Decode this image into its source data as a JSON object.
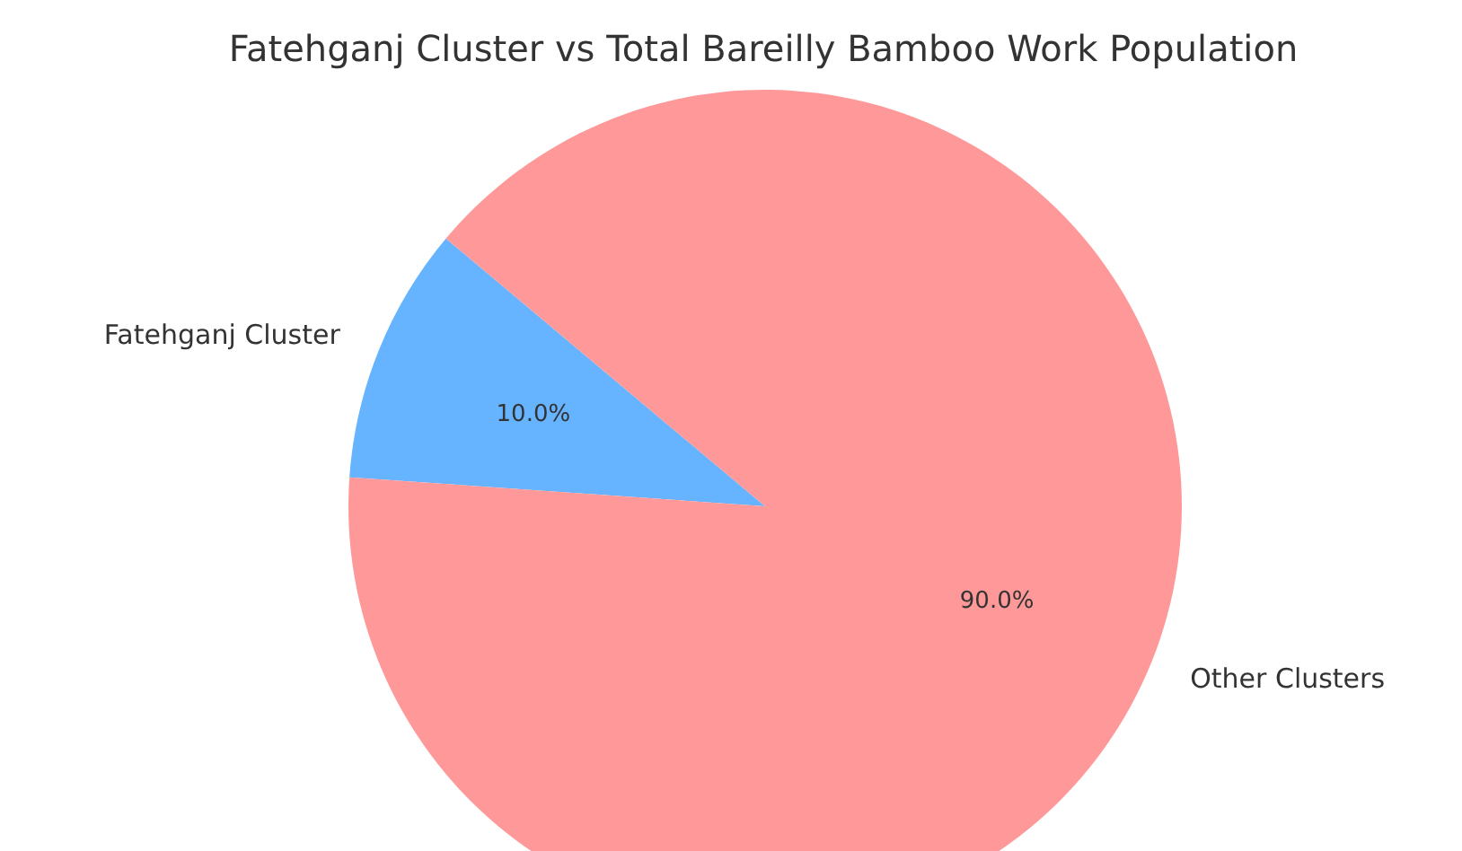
{
  "chart_data": {
    "type": "pie",
    "title": "Fatehganj Cluster vs Total Bareilly Bamboo Work Population",
    "categories": [
      "Fatehganj Cluster",
      "Other Clusters"
    ],
    "values": [
      10.0,
      90.0
    ],
    "colors": [
      "#66b3ff",
      "#ff9999"
    ],
    "value_labels": [
      "10.0%",
      "90.0%"
    ]
  }
}
